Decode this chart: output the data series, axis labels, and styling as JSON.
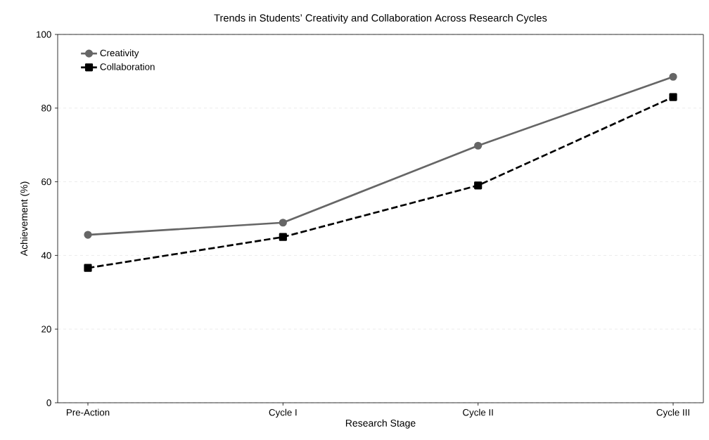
{
  "chart_data": {
    "type": "line",
    "title": "Trends in Students’ Creativity and Collaboration Across Research Cycles",
    "xlabel": "Research Stage",
    "ylabel": "Achievement (%)",
    "categories": [
      "Pre-Action",
      "Cycle I",
      "Cycle II",
      "Cycle III"
    ],
    "series": [
      {
        "name": "Creativity",
        "color": "#666666",
        "values": [
          45.6,
          48.9,
          69.8,
          88.5
        ],
        "marker": "circle",
        "line_style": "solid"
      },
      {
        "name": "Collaboration",
        "color": "#000000",
        "values": [
          36.6,
          45.0,
          59.0,
          83.0
        ],
        "marker": "square",
        "line_style": "dashed"
      }
    ],
    "ylim": [
      0,
      100
    ],
    "yticks": [
      0,
      20,
      40,
      60,
      80,
      100
    ],
    "grid": "y",
    "legend": "top left"
  }
}
